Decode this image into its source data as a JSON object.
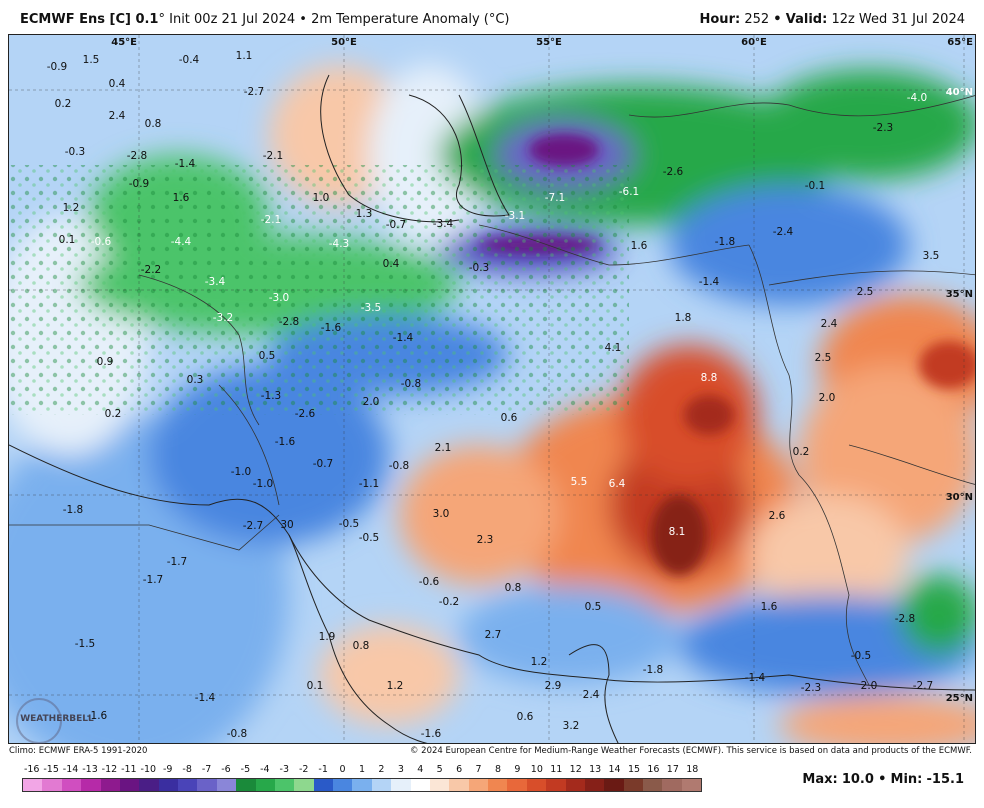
{
  "header": {
    "model": "ECMWF Ens [C] 0.1",
    "degree": "°",
    "init": "Init 00z 21 Jul 2024",
    "bullet": "•",
    "field": "2m Temperature Anomaly (°C)",
    "hour_label": "Hour:",
    "hour": "252",
    "valid_label": "Valid:",
    "valid": "12z Wed 31 Jul 2024"
  },
  "map": {
    "grid_labels": [
      {
        "text": "45°E"
      },
      {
        "text": "50°E"
      },
      {
        "text": "55°E"
      },
      {
        "text": "60°E"
      },
      {
        "text": "65°E"
      },
      {
        "text": "40°N"
      },
      {
        "text": "35°N"
      },
      {
        "text": "30°N"
      },
      {
        "text": "25°N"
      }
    ],
    "values": [
      "-0.9",
      "1.5",
      "0.4",
      "-0.4",
      "1.1",
      "0.2",
      "2.4",
      "0.8",
      "-2.7",
      "-0.3",
      "-2.8",
      "-1.4",
      "-2.1",
      "-0.9",
      "1.6",
      "1.2",
      "1.0",
      "1.3",
      "-0.7",
      "-3.4",
      "-3.1",
      "-7.1",
      "-6.1",
      "-2.6",
      "-4.0",
      "-2.3",
      "-0.1",
      "-2.1",
      "0.1",
      "-0.6",
      "-4.4",
      "-4.3",
      "-0.3",
      "1.6",
      "-1.8",
      "-2.4",
      "-2.2",
      "0.4",
      "-3.4",
      "-3.0",
      "-3.5",
      "-1.4",
      "3.5",
      "2.5",
      "2.4",
      "-3.2",
      "-2.8",
      "-1.6",
      "1.8",
      "-1.4",
      "0.9",
      "0.5",
      "4.1",
      "8.8",
      "2.5",
      "-0.8",
      "2.0",
      "0.2",
      "-1.3",
      "-2.6",
      "2.0",
      "0.6",
      "-1.6",
      "2.1",
      "0.2",
      "-1.0",
      "-0.7",
      "-0.8",
      "-1.0",
      "-1.1",
      "5.5",
      "6.4",
      "30",
      "-1.8",
      "3.0",
      "8.1",
      "2.6",
      "-2.7",
      "-0.5",
      "-0.5",
      "2.3",
      "-1.7",
      "-1.7",
      "-0.6",
      "0.8",
      "-0.2",
      "0.5",
      "1.6",
      "-2.8",
      "1.9",
      "0.8",
      "2.7",
      "1.2",
      "-1.8",
      "-1.5",
      "-0.5",
      "0.1",
      "1.2",
      "2.9",
      "2.4",
      "-1.4",
      "-2.3",
      "2.0",
      "-2.7",
      "-1.4",
      "-1.6",
      "-0.8",
      "0.6",
      "3.2",
      "-1.6",
      "0.3"
    ]
  },
  "footer": {
    "climo": "Climo: ECMWF ERA-5 1991-2020",
    "copyright": "© 2024 European Centre for Medium-Range Weather Forecasts (ECMWF). This service is based on data and products of the ECMWF."
  },
  "colorbar": {
    "ticks": [
      "-16",
      "-15",
      "-14",
      "-13",
      "-12",
      "-11",
      "-10",
      "-9",
      "-8",
      "-7",
      "-6",
      "-5",
      "-4",
      "-3",
      "-2",
      "-1",
      "0",
      "1",
      "2",
      "3",
      "4",
      "5",
      "6",
      "7",
      "8",
      "9",
      "10",
      "11",
      "12",
      "13",
      "14",
      "15",
      "16",
      "17",
      "18"
    ],
    "colors": [
      "#f2a6e6",
      "#e27ad2",
      "#d04ec0",
      "#b62aa8",
      "#8e1a8e",
      "#6a1482",
      "#4a1e86",
      "#3a2ea0",
      "#4a44b8",
      "#6a62c8",
      "#8a86d8",
      "#1a8a3a",
      "#27a84a",
      "#4cc46a",
      "#8ed88e",
      "#2a5ac8",
      "#4a86e0",
      "#7ab0ee",
      "#b4d4f6",
      "#e6f0fa",
      "#ffffff",
      "#fbe6d6",
      "#f8c8a8",
      "#f5a678",
      "#f08650",
      "#e8683a",
      "#d84e2a",
      "#c23a22",
      "#a42a1c",
      "#862018",
      "#6a1a14",
      "#7a3a2a",
      "#8a5a4a",
      "#a06a60",
      "#b07a70"
    ]
  },
  "stats": {
    "max_label": "Max:",
    "max": "10.0",
    "min_label": "Min:",
    "min": "-15.1"
  },
  "logo": {
    "text": "WEATHERBELL"
  }
}
